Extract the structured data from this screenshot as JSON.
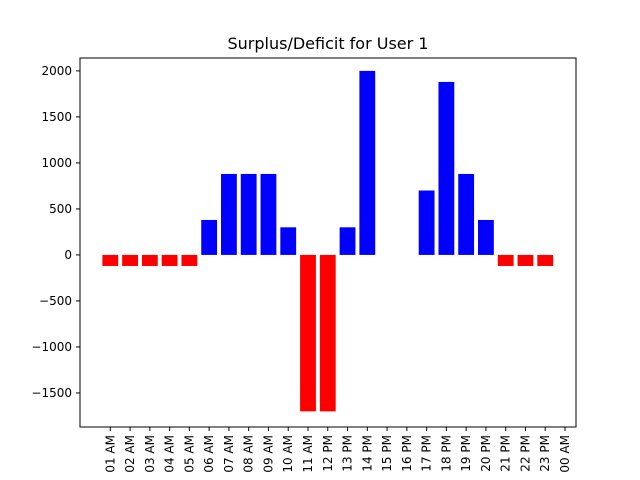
{
  "chart_data": {
    "type": "bar",
    "title": "Surplus/Deficit for User 1",
    "xlabel": "",
    "ylabel": "",
    "ylim": [
      -1870,
      2140
    ],
    "yticks": [
      -1500,
      -1000,
      -500,
      0,
      500,
      1000,
      1500,
      2000
    ],
    "grid": false,
    "categories": [
      "01 AM",
      "02 AM",
      "03 AM",
      "04 AM",
      "05 AM",
      "06 AM",
      "07 AM",
      "08 AM",
      "09 AM",
      "10 AM",
      "11 AM",
      "12 PM",
      "13 PM",
      "14 PM",
      "15 PM",
      "16 PM",
      "17 PM",
      "18 PM",
      "19 PM",
      "20 PM",
      "21 PM",
      "22 PM",
      "23 PM",
      "00 AM"
    ],
    "values": [
      -120,
      -120,
      -120,
      -120,
      -120,
      380,
      880,
      880,
      880,
      300,
      -1700,
      -1700,
      300,
      2000,
      0,
      0,
      700,
      1880,
      880,
      380,
      -120,
      -120,
      -120,
      0
    ],
    "colors": {
      "positive": "#0000ff",
      "negative": "#ff0000"
    }
  }
}
